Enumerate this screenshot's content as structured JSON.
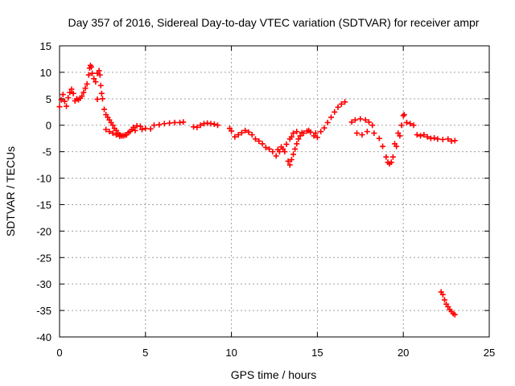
{
  "chart_data": {
    "type": "scatter",
    "title": "Day 357 of 2016, Sidereal Day-to-day VTEC variation (SDTVAR) for receiver ampr",
    "xlabel": "GPS time / hours",
    "ylabel": "SDTVAR / TECUs",
    "xlim": [
      0,
      25
    ],
    "ylim": [
      -40,
      15
    ],
    "xticks": [
      0,
      5,
      10,
      15,
      20,
      25
    ],
    "yticks": [
      15,
      10,
      5,
      0,
      -5,
      -10,
      -15,
      -20,
      -25,
      -30,
      -35,
      -40
    ],
    "grid": true,
    "marker": "plus",
    "color": "#ff0000",
    "series": [
      {
        "name": "SDTVAR",
        "points": [
          [
            0.0,
            3.5
          ],
          [
            0.1,
            4.8
          ],
          [
            0.2,
            5.8
          ],
          [
            0.3,
            4.5
          ],
          [
            0.4,
            3.6
          ],
          [
            0.5,
            5.2
          ],
          [
            0.6,
            6.2
          ],
          [
            0.7,
            6.8
          ],
          [
            0.8,
            6.0
          ],
          [
            0.9,
            4.6
          ],
          [
            1.0,
            5.0
          ],
          [
            1.1,
            4.8
          ],
          [
            1.2,
            5.1
          ],
          [
            1.3,
            5.5
          ],
          [
            1.4,
            6.2
          ],
          [
            1.5,
            7.0
          ],
          [
            1.6,
            7.8
          ],
          [
            1.7,
            9.5
          ],
          [
            1.75,
            10.8
          ],
          [
            1.8,
            11.3
          ],
          [
            1.85,
            11.0
          ],
          [
            1.9,
            9.8
          ],
          [
            2.0,
            8.8
          ],
          [
            2.1,
            8.2
          ],
          [
            2.2,
            9.8
          ],
          [
            2.3,
            10.3
          ],
          [
            2.35,
            9.5
          ],
          [
            2.4,
            7.5
          ],
          [
            2.45,
            6.0
          ],
          [
            2.5,
            5.0
          ],
          [
            2.2,
            4.9
          ],
          [
            2.6,
            3.0
          ],
          [
            2.7,
            2.0
          ],
          [
            2.8,
            1.5
          ],
          [
            2.9,
            1.0
          ],
          [
            3.0,
            0.5
          ],
          [
            3.1,
            0.0
          ],
          [
            3.2,
            -0.6
          ],
          [
            3.3,
            -1.0
          ],
          [
            3.4,
            -1.5
          ],
          [
            3.5,
            -1.8
          ],
          [
            3.6,
            -2.0
          ],
          [
            3.7,
            -2.0
          ],
          [
            3.8,
            -1.9
          ],
          [
            2.7,
            -0.8
          ],
          [
            2.9,
            -1.2
          ],
          [
            3.1,
            -1.5
          ],
          [
            3.3,
            -1.8
          ],
          [
            3.5,
            -2.1
          ],
          [
            3.9,
            -1.8
          ],
          [
            4.0,
            -1.4
          ],
          [
            4.1,
            -1.2
          ],
          [
            4.2,
            -0.8
          ],
          [
            4.3,
            -0.4
          ],
          [
            4.5,
            -0.1
          ],
          [
            4.7,
            -0.2
          ],
          [
            5.0,
            -0.6
          ],
          [
            5.3,
            -0.7
          ],
          [
            4.4,
            -1.0
          ],
          [
            4.8,
            -0.8
          ],
          [
            5.5,
            0.0
          ],
          [
            5.8,
            0.1
          ],
          [
            6.1,
            0.3
          ],
          [
            6.4,
            0.4
          ],
          [
            6.7,
            0.5
          ],
          [
            7.0,
            0.5
          ],
          [
            7.2,
            0.6
          ],
          [
            7.8,
            -0.3
          ],
          [
            8.0,
            -0.4
          ],
          [
            8.2,
            0.0
          ],
          [
            8.4,
            0.3
          ],
          [
            8.6,
            0.4
          ],
          [
            8.8,
            0.3
          ],
          [
            9.0,
            0.2
          ],
          [
            9.2,
            0.0
          ],
          [
            9.9,
            -0.6
          ],
          [
            10.0,
            -1.1
          ],
          [
            10.2,
            -2.2
          ],
          [
            10.4,
            -1.8
          ],
          [
            10.6,
            -1.4
          ],
          [
            10.8,
            -1.0
          ],
          [
            11.0,
            -1.3
          ],
          [
            11.2,
            -1.8
          ],
          [
            11.4,
            -2.6
          ],
          [
            11.6,
            -3.0
          ],
          [
            11.8,
            -3.5
          ],
          [
            12.0,
            -4.2
          ],
          [
            12.2,
            -4.5
          ],
          [
            12.4,
            -5.0
          ],
          [
            12.6,
            -5.8
          ],
          [
            12.8,
            -5.0
          ],
          [
            13.0,
            -4.5
          ],
          [
            13.2,
            -3.6
          ],
          [
            13.4,
            -2.6
          ],
          [
            13.5,
            -2.2
          ],
          [
            12.7,
            -4.6
          ],
          [
            12.9,
            -4.1
          ],
          [
            13.1,
            -5.0
          ],
          [
            13.3,
            -6.8
          ],
          [
            13.4,
            -7.5
          ],
          [
            13.5,
            -6.5
          ],
          [
            13.6,
            -5.5
          ],
          [
            13.7,
            -4.5
          ],
          [
            13.8,
            -3.5
          ],
          [
            13.9,
            -2.6
          ],
          [
            14.0,
            -2.0
          ],
          [
            14.2,
            -1.5
          ],
          [
            14.4,
            -1.1
          ],
          [
            14.6,
            -1.3
          ],
          [
            14.8,
            -2.0
          ],
          [
            15.0,
            -2.3
          ],
          [
            13.6,
            -1.5
          ],
          [
            13.8,
            -1.2
          ],
          [
            14.1,
            -1.4
          ],
          [
            14.5,
            -1.0
          ],
          [
            14.9,
            -1.5
          ],
          [
            15.2,
            -1.2
          ],
          [
            15.4,
            -0.5
          ],
          [
            15.6,
            0.5
          ],
          [
            15.8,
            1.5
          ],
          [
            16.0,
            2.5
          ],
          [
            16.2,
            3.4
          ],
          [
            16.4,
            4.0
          ],
          [
            16.6,
            4.4
          ],
          [
            17.0,
            0.6
          ],
          [
            17.2,
            1.0
          ],
          [
            17.5,
            1.2
          ],
          [
            17.8,
            1.0
          ],
          [
            18.0,
            0.6
          ],
          [
            18.2,
            0.0
          ],
          [
            17.3,
            -1.5
          ],
          [
            17.6,
            -1.8
          ],
          [
            17.9,
            -1.2
          ],
          [
            18.3,
            -1.5
          ],
          [
            18.6,
            -2.5
          ],
          [
            18.8,
            -4.0
          ],
          [
            19.0,
            -6.0
          ],
          [
            19.1,
            -7.0
          ],
          [
            19.2,
            -7.3
          ],
          [
            19.3,
            -7.0
          ],
          [
            19.4,
            -6.0
          ],
          [
            19.6,
            -4.0
          ],
          [
            19.8,
            -2.0
          ],
          [
            19.9,
            0.0
          ],
          [
            20.0,
            1.8
          ],
          [
            20.05,
            2.0
          ],
          [
            19.5,
            -3.5
          ],
          [
            19.7,
            -1.5
          ],
          [
            20.2,
            0.5
          ],
          [
            20.4,
            0.3
          ],
          [
            20.6,
            0.0
          ],
          [
            20.8,
            -1.8
          ],
          [
            21.0,
            -2.0
          ],
          [
            21.2,
            -1.8
          ],
          [
            21.4,
            -2.2
          ],
          [
            21.6,
            -2.5
          ],
          [
            21.8,
            -2.4
          ],
          [
            22.0,
            -2.6
          ],
          [
            22.3,
            -2.7
          ],
          [
            22.6,
            -2.6
          ],
          [
            22.8,
            -3.0
          ],
          [
            23.0,
            -2.9
          ],
          [
            22.2,
            -31.5
          ],
          [
            22.3,
            -32.0
          ],
          [
            22.4,
            -33.0
          ],
          [
            22.5,
            -33.8
          ],
          [
            22.6,
            -34.3
          ],
          [
            22.7,
            -34.8
          ],
          [
            22.8,
            -35.2
          ],
          [
            22.9,
            -35.6
          ],
          [
            23.0,
            -35.8
          ]
        ]
      }
    ]
  }
}
